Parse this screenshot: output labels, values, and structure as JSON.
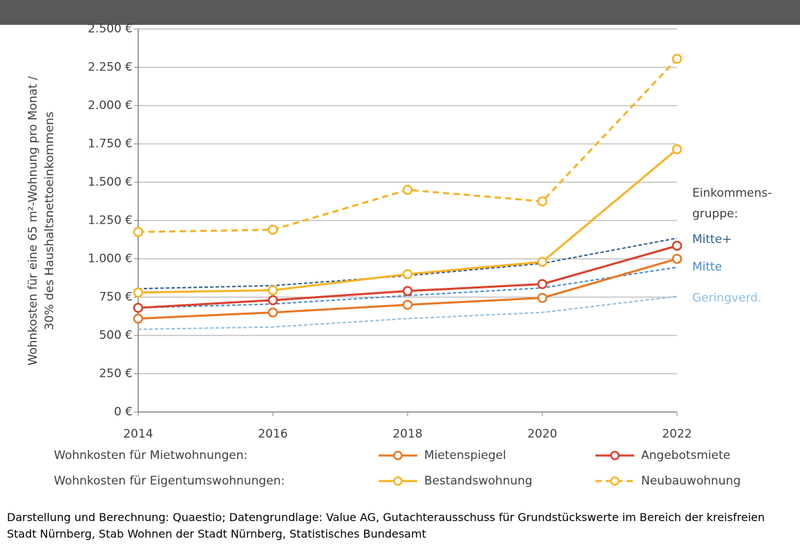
{
  "chart_data": {
    "type": "line",
    "y_axis_label": [
      "Wohnkosten für eine 65 m²-Wohnung pro Monat /",
      "30% des Haushaltsnettoeinkommens"
    ],
    "x": [
      2014,
      2016,
      2018,
      2020,
      2022
    ],
    "xlim": [
      2014,
      2022
    ],
    "xticks": [
      2014,
      2016,
      2018,
      2020,
      2022
    ],
    "ylim": [
      0,
      2500
    ],
    "yticks": [
      {
        "value": 0,
        "label": "0 €"
      },
      {
        "value": 250,
        "label": "250 €"
      },
      {
        "value": 500,
        "label": "500 €"
      },
      {
        "value": 750,
        "label": "750 €"
      },
      {
        "value": 1000,
        "label": "1.000 €"
      },
      {
        "value": 1250,
        "label": "1.250 €"
      },
      {
        "value": 1500,
        "label": "1.500 €"
      },
      {
        "value": 1750,
        "label": "1.750 €"
      },
      {
        "value": 2000,
        "label": "2.000 €"
      },
      {
        "value": 2250,
        "label": "2.250 €"
      },
      {
        "value": 2500,
        "label": "2.500 €"
      }
    ],
    "grid": true,
    "legend_rows": [
      "Wohnkosten für Mietwohnungen:",
      "Wohnkosten für Eigentumswohnungen:"
    ],
    "series": [
      {
        "name": "Mietenspiegel",
        "color": "#e87722",
        "dashed": false,
        "values": [
          610,
          650,
          700,
          745,
          1000
        ]
      },
      {
        "name": "Angebotsmiete",
        "color": "#d9412b",
        "dashed": false,
        "values": [
          680,
          730,
          790,
          835,
          1085
        ]
      },
      {
        "name": "Bestandswohnung",
        "color": "#f5b324",
        "dashed": false,
        "values": [
          780,
          795,
          900,
          980,
          1715
        ]
      },
      {
        "name": "Neubauwohnung",
        "color": "#f5b324",
        "dashed": true,
        "values": [
          1175,
          1190,
          1450,
          1375,
          2305
        ]
      }
    ],
    "income_group_label": [
      "Einkommens-",
      "gruppe:"
    ],
    "income_series": [
      {
        "name": "Mitte+",
        "color": "#2e5f8a",
        "values": [
          805,
          825,
          890,
          970,
          1135
        ]
      },
      {
        "name": "Mitte",
        "color": "#4a8cc8",
        "values": [
          680,
          705,
          760,
          810,
          945
        ]
      },
      {
        "name": "Geringverd.",
        "color": "#8fbde0",
        "values": [
          540,
          555,
          610,
          650,
          755
        ]
      }
    ]
  },
  "source": "Darstellung und Berechnung: Quaestio; Datengrundlage: Value AG, Gutachterausschuss für Grundstückswerte im Bereich der kreisfreien Stadt Nürnberg, Stab Wohnen der Stadt Nürnberg, Statistisches Bundesamt"
}
